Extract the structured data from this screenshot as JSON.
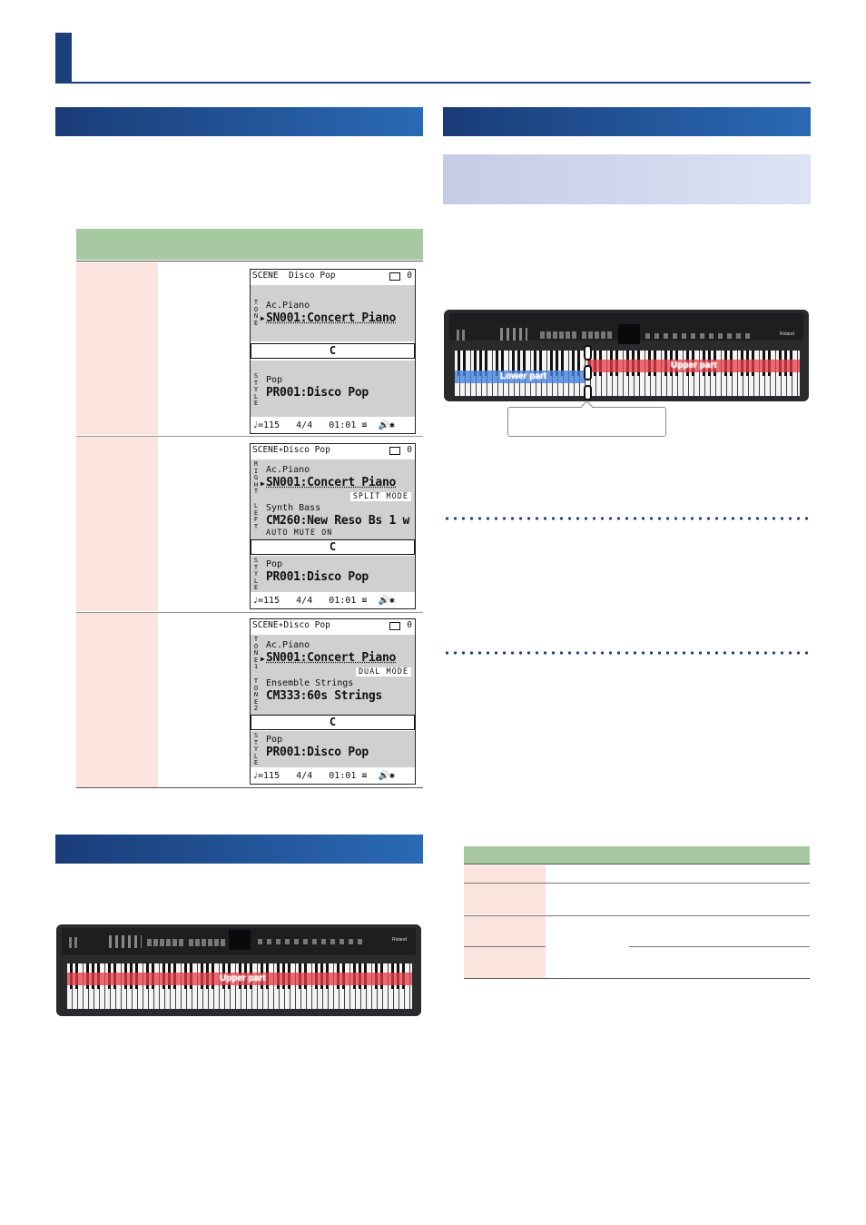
{
  "scenes": [
    {
      "top": "SCENE  Disco Pop",
      "count": "0",
      "section1": {
        "label": "TONE",
        "name": "Ac.Piano",
        "tone": "SN001:Concert Piano"
      },
      "key": "C",
      "style": {
        "label": "STYLE",
        "name": "Pop",
        "tone": "PR001:Disco Pop"
      },
      "bottom": "♩=115   4/4   01:01 ≡  🔊✱"
    },
    {
      "top": "SCENE∗Disco Pop",
      "count": "0",
      "section1": {
        "label": "RIGHT",
        "name": "Ac.Piano",
        "tone": "SN001:Concert Piano"
      },
      "mode": "SPLIT MODE",
      "section2": {
        "label": "LEFT",
        "name": "Synth Bass",
        "tone": "CM260:New Reso Bs 1 w",
        "extra": "AUTO MUTE ON"
      },
      "key": "C",
      "style": {
        "label": "STYLE",
        "name": "Pop",
        "tone": "PR001:Disco Pop"
      },
      "bottom": "♩=115   4/4   01:01 ≡  🔊✱"
    },
    {
      "top": "SCENE∗Disco Pop",
      "count": "0",
      "section1": {
        "label": "TONE1",
        "name": "Ac.Piano",
        "tone": "SN001:Concert Piano"
      },
      "mode": "DUAL MODE",
      "section2": {
        "label": "TONE2",
        "name": "Ensemble Strings",
        "tone": "CM333:60s Strings"
      },
      "key": "C",
      "style": {
        "label": "STYLE",
        "name": "Pop",
        "tone": "PR001:Disco Pop"
      },
      "bottom": "♩=115   4/4   01:01 ≡  🔊✱"
    }
  ],
  "keyboards": {
    "split": {
      "left_zone": "Lower part",
      "right_zone": "Upper part",
      "brand": "Roland"
    },
    "whole": {
      "zone": "Upper part",
      "brand": "Roland"
    }
  },
  "colors": {
    "title": "#1c3f7a",
    "band_left": "#1a3c78",
    "band_right": "#2a6ab5",
    "table_header": "#a6c9a1",
    "table_cell": "#fae4dd",
    "zone_upper": "#e83c46",
    "zone_lower": "#4682dc"
  }
}
